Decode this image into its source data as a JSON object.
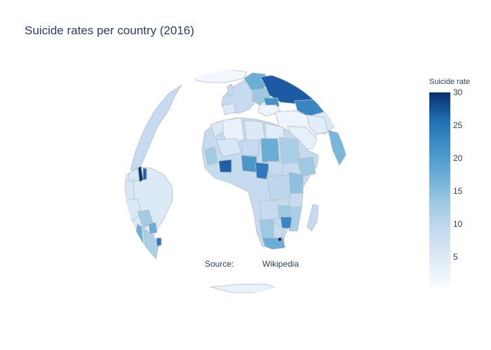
{
  "title": "Suicide rates per country (2016)",
  "map": {
    "type": "choropleth",
    "projection": "orthographic",
    "background": "#ffffff",
    "land_border": "#b5bcc4",
    "ocean": "#ffffff"
  },
  "annotation": {
    "label": "Source:",
    "value": "Wikipedia"
  },
  "legend": {
    "title": "Suicide rate",
    "ticks": [
      "30",
      "25",
      "20",
      "15",
      "10",
      "5"
    ],
    "range": [
      0.4,
      30
    ],
    "colorscale": "Blues"
  }
}
